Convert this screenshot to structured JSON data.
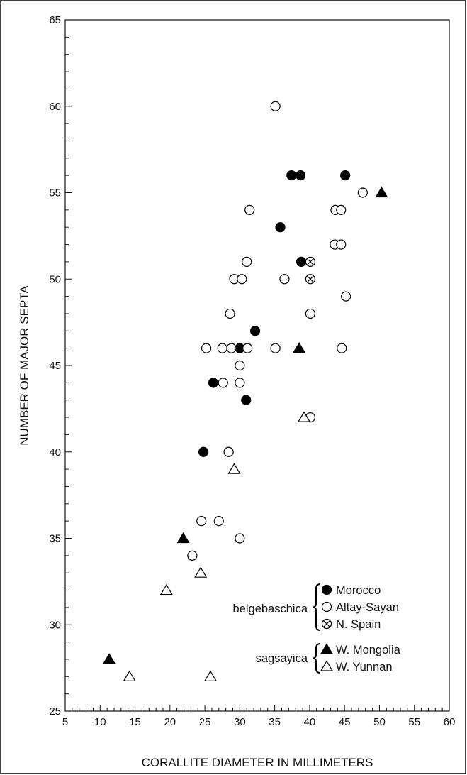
{
  "chart_data": {
    "type": "scatter",
    "xlabel": "CORALLITE DIAMETER IN MILLIMETERS",
    "ylabel": "NUMBER OF MAJOR SEPTA",
    "xlim": [
      5,
      60
    ],
    "ylim": [
      25,
      65
    ],
    "xticks": [
      5,
      10,
      15,
      20,
      25,
      30,
      35,
      40,
      45,
      50,
      55,
      60
    ],
    "yticks": [
      25,
      30,
      35,
      40,
      45,
      50,
      55,
      60,
      65
    ],
    "grid": false,
    "legend_position": "lower-right",
    "legend_groups": [
      {
        "label": "belgebaschica",
        "entries": [
          "Morocco",
          "Altay-Sayan",
          "N. Spain"
        ]
      },
      {
        "label": "sagsayica",
        "entries": [
          "W. Mongolia",
          "W. Yunnan"
        ]
      }
    ],
    "series": [
      {
        "name": "Morocco",
        "marker": "filled-circle",
        "points": [
          [
            37.4,
            56
          ],
          [
            38.7,
            56
          ],
          [
            45.1,
            56
          ],
          [
            35.8,
            53
          ],
          [
            38.8,
            51
          ],
          [
            32.2,
            47
          ],
          [
            30.0,
            46
          ],
          [
            26.2,
            44
          ],
          [
            30.9,
            43
          ],
          [
            24.8,
            40
          ]
        ]
      },
      {
        "name": "Altay-Sayan",
        "marker": "open-circle",
        "points": [
          [
            35.1,
            60
          ],
          [
            47.6,
            55
          ],
          [
            31.4,
            54
          ],
          [
            43.7,
            54
          ],
          [
            44.5,
            54
          ],
          [
            43.6,
            52
          ],
          [
            44.5,
            52
          ],
          [
            31.0,
            51
          ],
          [
            29.2,
            50
          ],
          [
            30.3,
            50
          ],
          [
            36.4,
            50
          ],
          [
            28.6,
            48
          ],
          [
            40.1,
            48
          ],
          [
            45.2,
            49
          ],
          [
            25.2,
            46
          ],
          [
            27.5,
            46
          ],
          [
            28.8,
            46
          ],
          [
            31.1,
            46
          ],
          [
            35.1,
            46
          ],
          [
            44.6,
            46
          ],
          [
            30.0,
            45
          ],
          [
            27.6,
            44
          ],
          [
            30.0,
            44
          ],
          [
            40.1,
            42
          ],
          [
            28.4,
            40
          ],
          [
            24.5,
            36
          ],
          [
            27.0,
            36
          ],
          [
            30.0,
            35
          ],
          [
            23.2,
            34
          ]
        ]
      },
      {
        "name": "N. Spain",
        "marker": "crossed-circle",
        "points": [
          [
            40.1,
            51
          ],
          [
            40.1,
            50
          ]
        ]
      },
      {
        "name": "W. Mongolia",
        "marker": "filled-triangle",
        "points": [
          [
            50.3,
            55
          ],
          [
            38.5,
            46
          ],
          [
            21.9,
            35
          ],
          [
            11.3,
            28
          ]
        ]
      },
      {
        "name": "W. Yunnan",
        "marker": "open-triangle",
        "points": [
          [
            39.2,
            42
          ],
          [
            29.2,
            39
          ],
          [
            24.4,
            33
          ],
          [
            19.5,
            32
          ],
          [
            14.2,
            27
          ],
          [
            25.8,
            27
          ]
        ]
      }
    ]
  }
}
